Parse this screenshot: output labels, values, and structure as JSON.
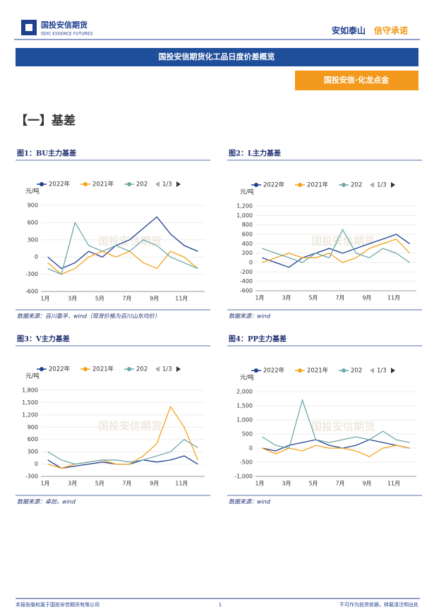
{
  "header": {
    "logo_cn": "国投安信期货",
    "logo_en": "SDIC ESSENCE FUTURES",
    "motto_1": "安如泰山",
    "motto_2": "信守承诺"
  },
  "banner": "国投安信期货化工品日度价差概览",
  "badge": "国投安信·化龙点金",
  "section": "【一】基差",
  "watermark": "国投安信期货",
  "chart_data": [
    {
      "type": "line",
      "title": "图1：BU主力基差",
      "source": "数据来源：百川盈孚，wind（现货价格为百川山东均价）",
      "y_label": "元/吨",
      "legend_page": "1/3",
      "categories": [
        "1月",
        null,
        "3月",
        null,
        "5月",
        null,
        "7月",
        null,
        "9月",
        null,
        "11月",
        null
      ],
      "series": [
        {
          "name": "2022年",
          "color": "#1f3f8f",
          "values": [
            0,
            -200,
            -100,
            100,
            0,
            200,
            300,
            500,
            700,
            400,
            200,
            100
          ]
        },
        {
          "name": "2021年",
          "color": "#f5a21b",
          "values": [
            -100,
            -300,
            -200,
            0,
            100,
            0,
            100,
            -100,
            -200,
            100,
            0,
            -200
          ]
        },
        {
          "name": "202",
          "color": "#6fa8a8",
          "values": [
            -200,
            -300,
            600,
            200,
            100,
            200,
            100,
            300,
            200,
            0,
            -100,
            -200
          ]
        }
      ],
      "ylim": [
        -600,
        900
      ],
      "yticks": [
        -600,
        -300,
        0,
        300,
        600,
        900
      ]
    },
    {
      "type": "line",
      "title": "图2：L主力基差",
      "source": "数据来源：wind",
      "y_label": "元/吨",
      "legend_page": "1/3",
      "categories": [
        "1月",
        null,
        "3月",
        null,
        "5月",
        null,
        "7月",
        null,
        "9月",
        null,
        "11月",
        null
      ],
      "series": [
        {
          "name": "2022年",
          "color": "#1f3f8f",
          "values": [
            100,
            0,
            -100,
            100,
            200,
            300,
            200,
            300,
            400,
            500,
            600,
            400
          ]
        },
        {
          "name": "2021年",
          "color": "#f5a21b",
          "values": [
            0,
            100,
            200,
            100,
            100,
            200,
            0,
            100,
            300,
            400,
            500,
            200
          ]
        },
        {
          "name": "202",
          "color": "#6fa8a8",
          "values": [
            300,
            200,
            100,
            0,
            200,
            100,
            700,
            200,
            100,
            300,
            200,
            0
          ]
        }
      ],
      "ylim": [
        -600,
        1200
      ],
      "yticks": [
        -600,
        -400,
        -200,
        0,
        200,
        400,
        600,
        800,
        {
          "value": 1000,
          "label": "1,000"
        },
        {
          "value": 1200,
          "label": "1,200"
        }
      ]
    },
    {
      "type": "line",
      "title": "图3：V主力基差",
      "source": "数据来源：卓创，wind",
      "y_label": "元/吨",
      "legend_page": "1/3",
      "categories": [
        "1月",
        null,
        "3月",
        null,
        "5月",
        null,
        "7月",
        null,
        "9月",
        null,
        "11月",
        null
      ],
      "series": [
        {
          "name": "2022年",
          "color": "#1f3f8f",
          "values": [
            100,
            -100,
            -50,
            0,
            50,
            0,
            0,
            100,
            50,
            100,
            200,
            0
          ]
        },
        {
          "name": "2021年",
          "color": "#f5a21b",
          "values": [
            0,
            -100,
            0,
            50,
            100,
            0,
            0,
            200,
            500,
            1400,
            900,
            100
          ]
        },
        {
          "name": "202",
          "color": "#6fa8a8",
          "values": [
            300,
            100,
            0,
            50,
            100,
            100,
            50,
            100,
            200,
            300,
            600,
            400
          ]
        }
      ],
      "ylim": [
        -300,
        1800
      ],
      "yticks": [
        -300,
        0,
        300,
        600,
        900,
        {
          "value": 1200,
          "label": "1,200"
        },
        {
          "value": 1500,
          "label": "1,500"
        },
        {
          "value": 1800,
          "label": "1,800"
        }
      ]
    },
    {
      "type": "line",
      "title": "图4：PP主力基差",
      "source": "数据来源：wind",
      "y_label": "元/吨",
      "legend_page": "1/3",
      "categories": [
        "1月",
        null,
        "3月",
        null,
        "5月",
        null,
        "7月",
        null,
        "9月",
        null,
        "11月",
        null
      ],
      "series": [
        {
          "name": "2022年",
          "color": "#1f3f8f",
          "values": [
            0,
            -100,
            100,
            200,
            300,
            100,
            0,
            100,
            300,
            200,
            100,
            0
          ]
        },
        {
          "name": "2021年",
          "color": "#f5a21b",
          "values": [
            0,
            -200,
            0,
            -100,
            100,
            0,
            0,
            -100,
            -300,
            0,
            100,
            0
          ]
        },
        {
          "name": "202",
          "color": "#6fa8a8",
          "values": [
            400,
            100,
            0,
            1700,
            300,
            200,
            300,
            400,
            300,
            600,
            300,
            200
          ]
        }
      ],
      "ylim": [
        -1000,
        2000
      ],
      "yticks": [
        {
          "value": -1000,
          "label": "-1,000"
        },
        -500,
        0,
        500,
        {
          "value": 1000,
          "label": "1,000"
        },
        {
          "value": 1500,
          "label": "1,500"
        },
        {
          "value": 2000,
          "label": "2,000"
        }
      ]
    }
  ],
  "footer": {
    "left": "本报告版权属于国投安信期货有限公司",
    "page": "1",
    "right": "不可作为投资依据，转载请注明出处"
  }
}
